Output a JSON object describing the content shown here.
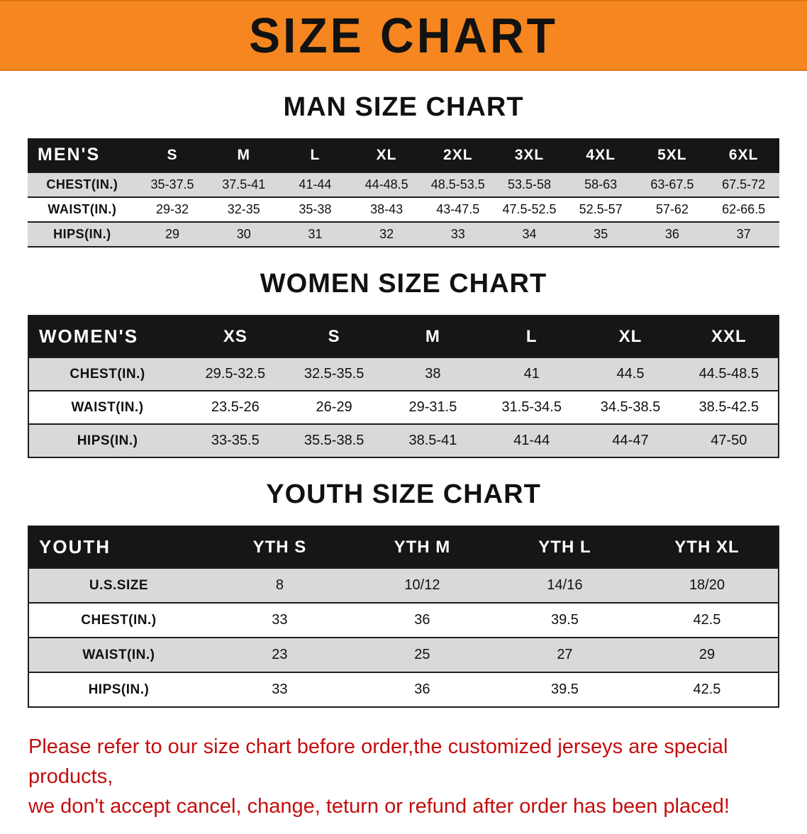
{
  "banner": {
    "title": "SIZE CHART",
    "background_color": "#f6861f",
    "text_color": "#121212"
  },
  "chart_data": [
    {
      "type": "table",
      "title": "MAN SIZE CHART",
      "header": [
        "MEN'S",
        "S",
        "M",
        "L",
        "XL",
        "2XL",
        "3XL",
        "4XL",
        "5XL",
        "6XL"
      ],
      "rows": [
        [
          "CHEST(IN.)",
          "35-37.5",
          "37.5-41",
          "41-44",
          "44-48.5",
          "48.5-53.5",
          "53.5-58",
          "58-63",
          "63-67.5",
          "67.5-72"
        ],
        [
          "WAIST(IN.)",
          "29-32",
          "32-35",
          "35-38",
          "38-43",
          "43-47.5",
          "47.5-52.5",
          "52.5-57",
          "57-62",
          "62-66.5"
        ],
        [
          "HIPS(IN.)",
          "29",
          "30",
          "31",
          "32",
          "33",
          "34",
          "35",
          "36",
          "37"
        ]
      ]
    },
    {
      "type": "table",
      "title": "WOMEN SIZE CHART",
      "header": [
        "WOMEN'S",
        "XS",
        "S",
        "M",
        "L",
        "XL",
        "XXL"
      ],
      "rows": [
        [
          "CHEST(IN.)",
          "29.5-32.5",
          "32.5-35.5",
          "38",
          "41",
          "44.5",
          "44.5-48.5"
        ],
        [
          "WAIST(IN.)",
          "23.5-26",
          "26-29",
          "29-31.5",
          "31.5-34.5",
          "34.5-38.5",
          "38.5-42.5"
        ],
        [
          "HIPS(IN.)",
          "33-35.5",
          "35.5-38.5",
          "38.5-41",
          "41-44",
          "44-47",
          "47-50"
        ]
      ]
    },
    {
      "type": "table",
      "title": "YOUTH SIZE CHART",
      "header": [
        "YOUTH",
        "YTH S",
        "YTH M",
        "YTH L",
        "YTH XL"
      ],
      "rows": [
        [
          "U.S.SIZE",
          "8",
          "10/12",
          "14/16",
          "18/20"
        ],
        [
          "CHEST(IN.)",
          "33",
          "36",
          "39.5",
          "42.5"
        ],
        [
          "WAIST(IN.)",
          "23",
          "25",
          "27",
          "29"
        ],
        [
          "HIPS(IN.)",
          "33",
          "36",
          "39.5",
          "42.5"
        ]
      ]
    }
  ],
  "disclaimer": {
    "line1": "Please refer to our size chart before order,the customized jerseys are special products,",
    "line2": "we don't accept cancel, change, teturn or refund after order has been placed!",
    "color": "#c40e0e"
  }
}
